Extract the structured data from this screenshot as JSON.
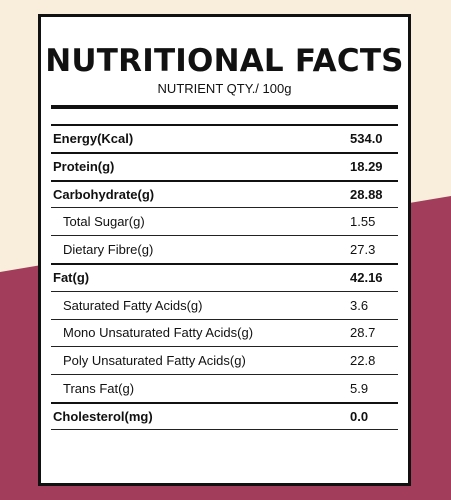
{
  "colors": {
    "cream": "#f8eedb",
    "maroon": "#a23e5b",
    "card": "#ffffff",
    "text": "#111111"
  },
  "panel": {
    "title": "NUTRITIONAL FACTS",
    "subtitle": "NUTRIENT QTY./ 100g"
  },
  "rows": [
    {
      "label": "Energy(Kcal)",
      "value": "534.0"
    },
    {
      "label": "Protein(g)",
      "value": "18.29"
    },
    {
      "label": "Carbohydrate(g)",
      "value": "28.88"
    },
    {
      "label": "Total Sugar(g)",
      "value": "1.55"
    },
    {
      "label": "Dietary Fibre(g)",
      "value": "27.3"
    },
    {
      "label": "Fat(g)",
      "value": "42.16"
    },
    {
      "label": "Saturated Fatty Acids(g)",
      "value": "3.6"
    },
    {
      "label": "Mono Unsaturated Fatty Acids(g)",
      "value": "28.7"
    },
    {
      "label": "Poly Unsaturated Fatty Acids(g)",
      "value": "22.8"
    },
    {
      "label": "Trans Fat(g)",
      "value": "5.9"
    },
    {
      "label": "Cholesterol(mg)",
      "value": "0.0"
    }
  ]
}
